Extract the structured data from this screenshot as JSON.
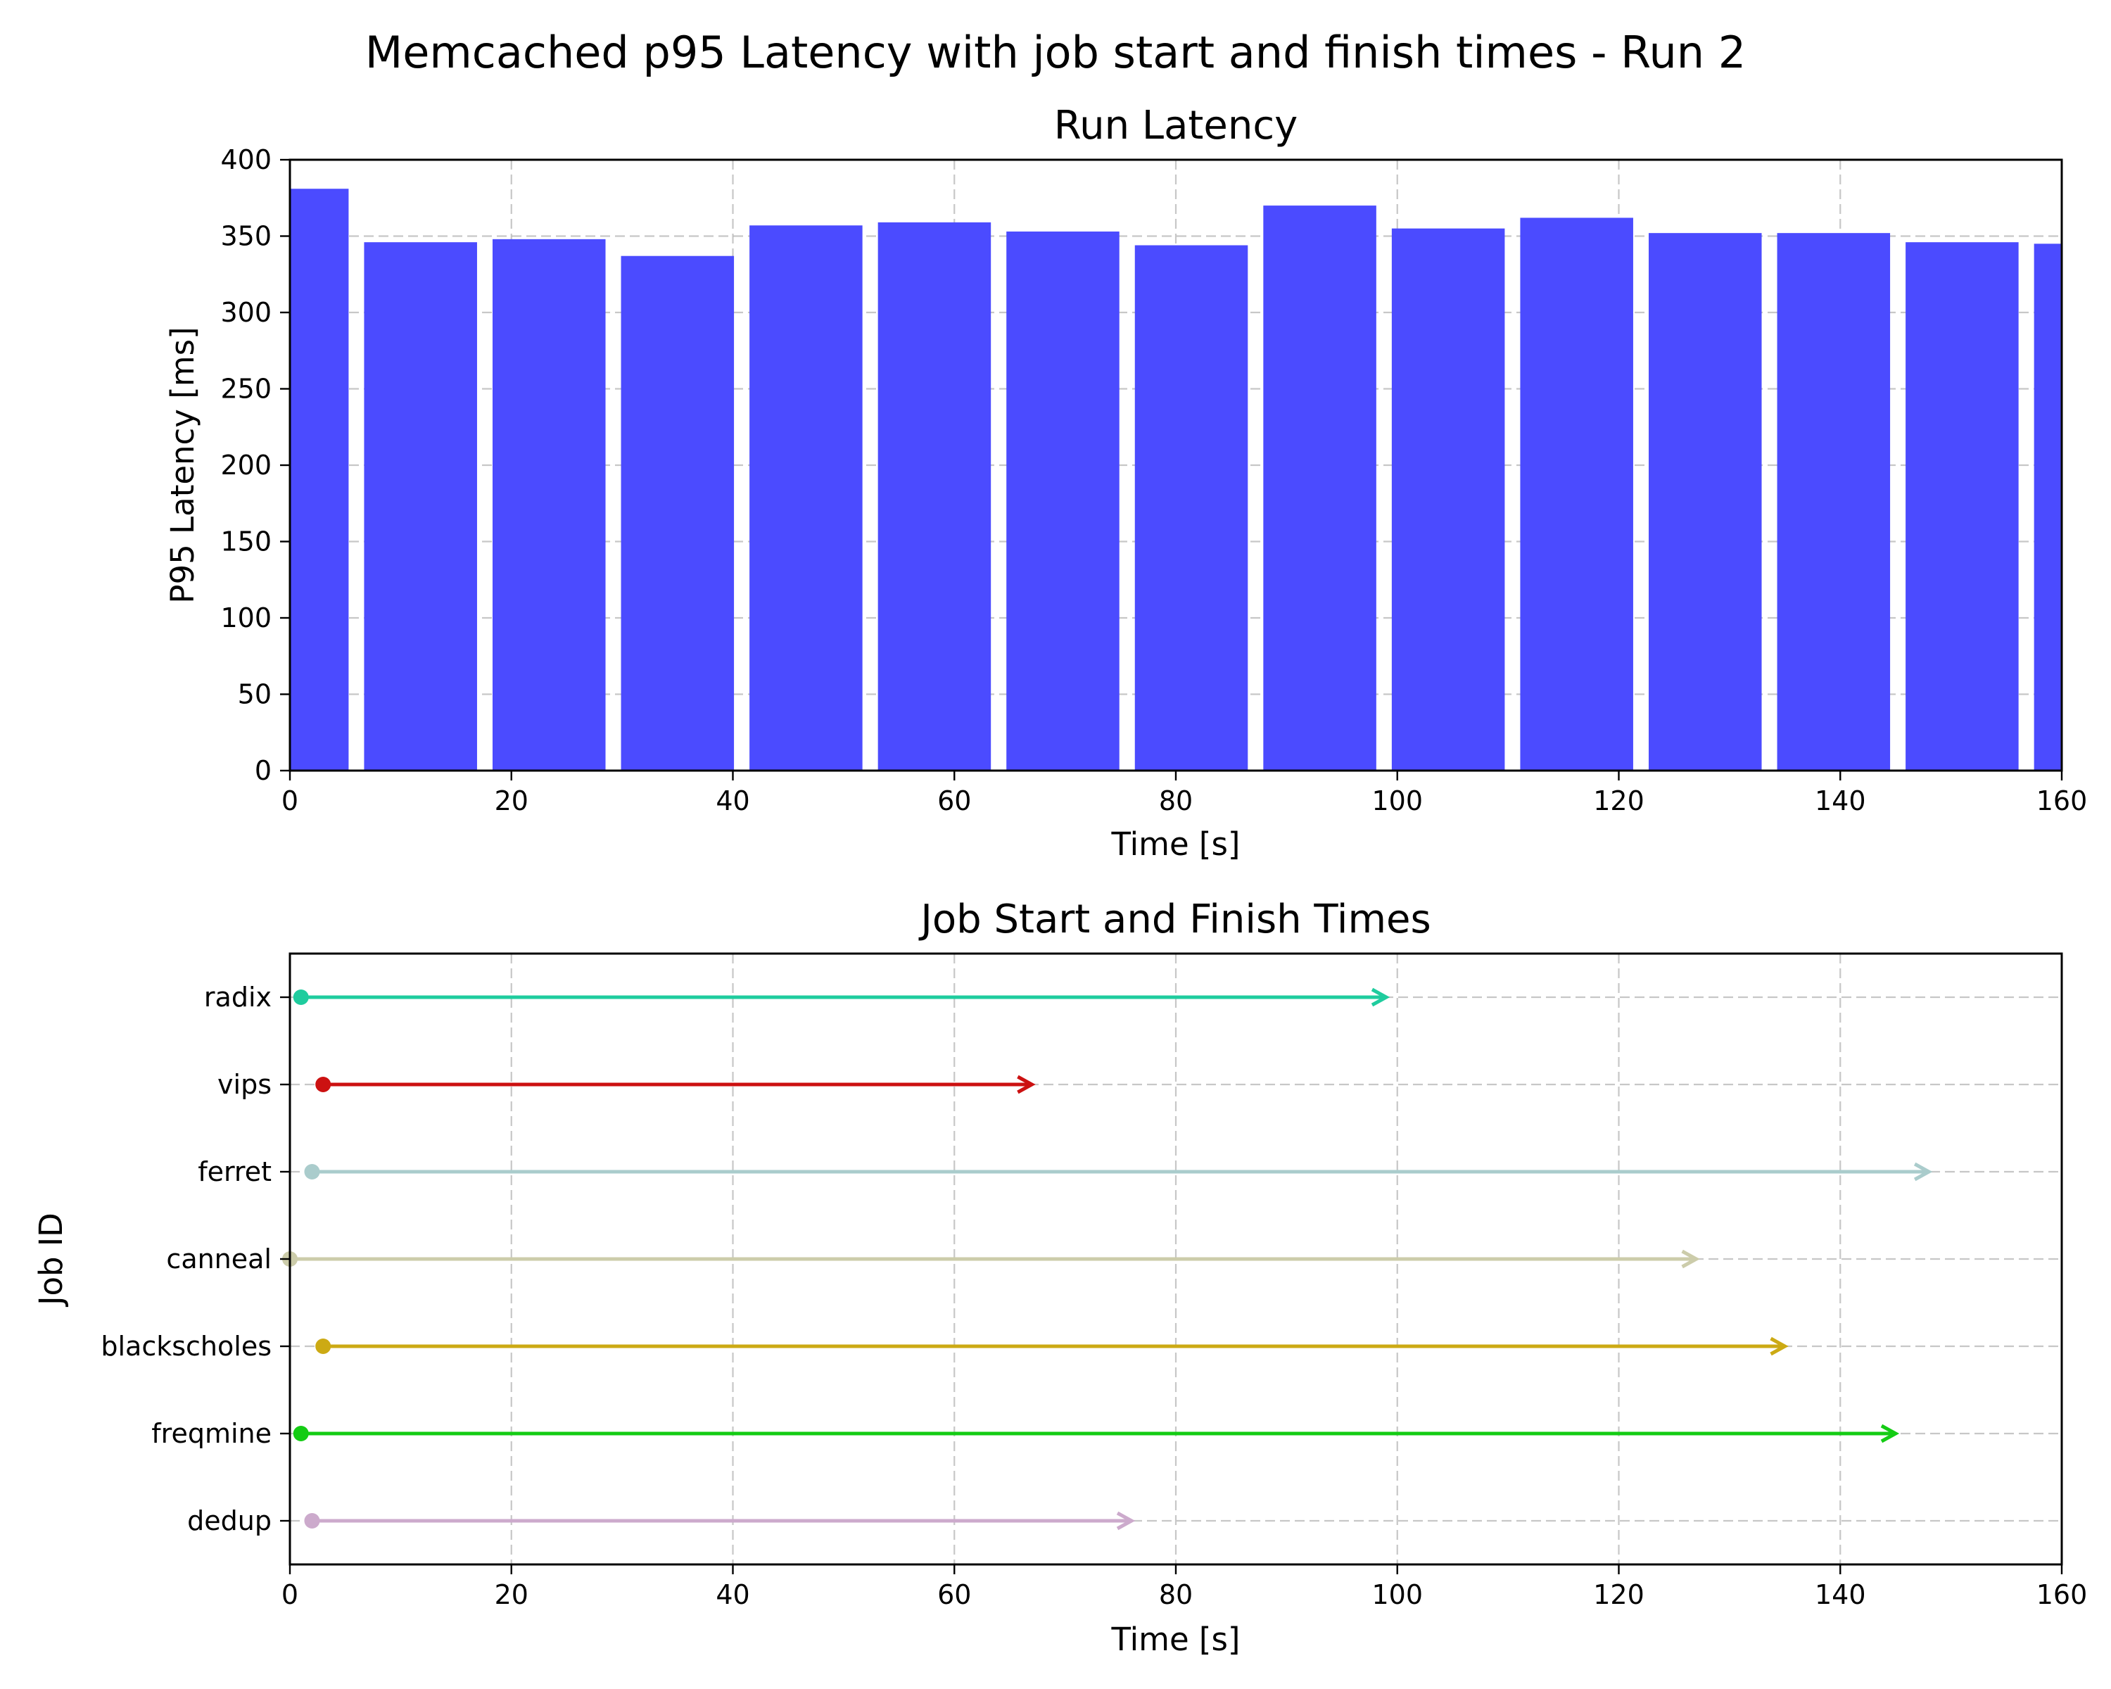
{
  "figure": {
    "suptitle": "Memcached p95 Latency with job start and finish times - Run 2"
  },
  "chart_data": [
    {
      "type": "bar",
      "title": "Run Latency",
      "xlabel": "Time [s]",
      "ylabel": "P95 Latency [ms]",
      "xlim": [
        0,
        160
      ],
      "ylim": [
        0,
        400
      ],
      "xticks": [
        0,
        20,
        40,
        60,
        80,
        100,
        120,
        140,
        160
      ],
      "yticks": [
        0,
        50,
        100,
        150,
        200,
        250,
        300,
        350,
        400
      ],
      "grid": true,
      "color": "#4b4bff",
      "bars": [
        {
          "start": -5.3,
          "end": 5.3,
          "value": 381
        },
        {
          "start": 6.7,
          "end": 16.9,
          "value": 346
        },
        {
          "start": 18.3,
          "end": 28.5,
          "value": 348
        },
        {
          "start": 29.9,
          "end": 40.1,
          "value": 337
        },
        {
          "start": 41.5,
          "end": 51.7,
          "value": 357
        },
        {
          "start": 53.1,
          "end": 63.3,
          "value": 359
        },
        {
          "start": 64.7,
          "end": 74.9,
          "value": 353
        },
        {
          "start": 76.3,
          "end": 86.5,
          "value": 344
        },
        {
          "start": 87.9,
          "end": 98.1,
          "value": 370
        },
        {
          "start": 99.5,
          "end": 109.7,
          "value": 355
        },
        {
          "start": 111.1,
          "end": 121.3,
          "value": 362
        },
        {
          "start": 122.7,
          "end": 132.9,
          "value": 352
        },
        {
          "start": 134.3,
          "end": 144.5,
          "value": 352
        },
        {
          "start": 145.9,
          "end": 156.1,
          "value": 346
        },
        {
          "start": 157.5,
          "end": 167.7,
          "value": 345
        }
      ]
    },
    {
      "type": "timeline",
      "title": "Job Start and Finish Times",
      "xlabel": "Time [s]",
      "ylabel": "Job ID",
      "xlim": [
        0,
        160
      ],
      "xticks": [
        0,
        20,
        40,
        60,
        80,
        100,
        120,
        140,
        160
      ],
      "grid": true,
      "jobs": [
        {
          "name": "radix",
          "start": 1,
          "end": 99,
          "color": "#1fcc9e"
        },
        {
          "name": "vips",
          "start": 3,
          "end": 67,
          "color": "#cc1111"
        },
        {
          "name": "ferret",
          "start": 2,
          "end": 148,
          "color": "#aacccc"
        },
        {
          "name": "canneal",
          "start": 0,
          "end": 127,
          "color": "#ccccaa"
        },
        {
          "name": "blackscholes",
          "start": 3,
          "end": 135,
          "color": "#ccaa14"
        },
        {
          "name": "freqmine",
          "start": 1,
          "end": 145,
          "color": "#14cc14"
        },
        {
          "name": "dedup",
          "start": 2,
          "end": 76,
          "color": "#ccaacc"
        }
      ]
    }
  ]
}
